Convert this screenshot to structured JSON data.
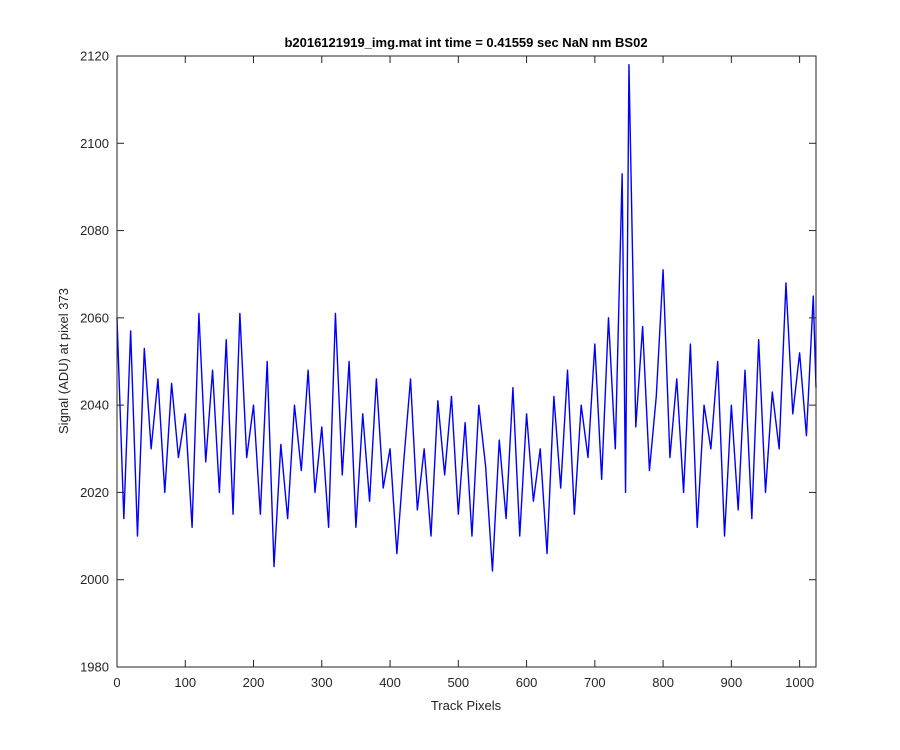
{
  "chart_data": {
    "type": "line",
    "title": "b2016121919_img.mat int time = 0.41559 sec  NaN nm BS02",
    "xlabel": "Track Pixels",
    "ylabel": "Signal (ADU) at pixel 373",
    "xlim": [
      0,
      1024
    ],
    "ylim": [
      1980,
      2120
    ],
    "xticks": [
      0,
      100,
      200,
      300,
      400,
      500,
      600,
      700,
      800,
      900,
      1000
    ],
    "yticks": [
      1980,
      2000,
      2020,
      2040,
      2060,
      2080,
      2100,
      2120
    ],
    "grid": false,
    "line_color": "#0000FF",
    "series": [
      {
        "x": [
          0,
          10,
          20,
          30,
          40,
          50,
          60,
          70,
          80,
          90,
          100,
          110,
          120,
          130,
          140,
          150,
          160,
          170,
          180,
          190,
          200,
          210,
          220,
          230,
          240,
          250,
          260,
          270,
          280,
          290,
          300,
          310,
          320,
          330,
          340,
          350,
          360,
          370,
          380,
          390,
          400,
          410,
          420,
          430,
          440,
          450,
          460,
          470,
          480,
          490,
          500,
          510,
          520,
          530,
          540,
          550,
          560,
          570,
          580,
          590,
          600,
          610,
          620,
          630,
          640,
          650,
          660,
          670,
          680,
          690,
          700,
          710,
          720,
          730,
          740,
          745,
          750,
          760,
          770,
          780,
          790,
          800,
          810,
          820,
          830,
          840,
          850,
          860,
          870,
          880,
          890,
          900,
          910,
          920,
          930,
          940,
          950,
          960,
          970,
          980,
          990,
          1000,
          1010,
          1020,
          1024
        ],
        "y": [
          2060,
          2014,
          2057,
          2010,
          2053,
          2030,
          2046,
          2020,
          2045,
          2028,
          2038,
          2012,
          2061,
          2027,
          2048,
          2020,
          2055,
          2015,
          2061,
          2028,
          2040,
          2015,
          2050,
          2003,
          2031,
          2014,
          2040,
          2025,
          2048,
          2020,
          2035,
          2012,
          2061,
          2024,
          2050,
          2012,
          2038,
          2018,
          2046,
          2021,
          2030,
          2006,
          2027,
          2046,
          2016,
          2030,
          2010,
          2041,
          2024,
          2042,
          2015,
          2036,
          2010,
          2040,
          2026,
          2002,
          2032,
          2014,
          2044,
          2010,
          2038,
          2018,
          2030,
          2006,
          2042,
          2021,
          2048,
          2015,
          2040,
          2028,
          2054,
          2023,
          2060,
          2030,
          2093,
          2020,
          2118,
          2035,
          2058,
          2025,
          2042,
          2071,
          2028,
          2046,
          2020,
          2054,
          2012,
          2040,
          2030,
          2050,
          2010,
          2040,
          2016,
          2048,
          2014,
          2055,
          2020,
          2043,
          2030,
          2068,
          2038,
          2052,
          2033,
          2065,
          2044
        ]
      }
    ]
  }
}
